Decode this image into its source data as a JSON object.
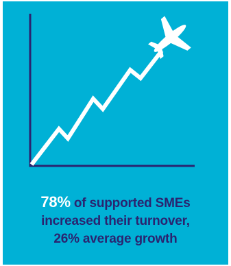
{
  "colors": {
    "background": "#00b1d6",
    "axis": "#2a2470",
    "graphic": "#ffffff",
    "text": "#2a2470",
    "highlight": "#ffffff"
  },
  "icons": [
    "airplane-icon",
    "growth-line-icon"
  ],
  "caption": {
    "highlight": "78%",
    "line1_rest": " of supported SMEs",
    "line2": "increased their turnover,",
    "line3": "26% average growth"
  }
}
